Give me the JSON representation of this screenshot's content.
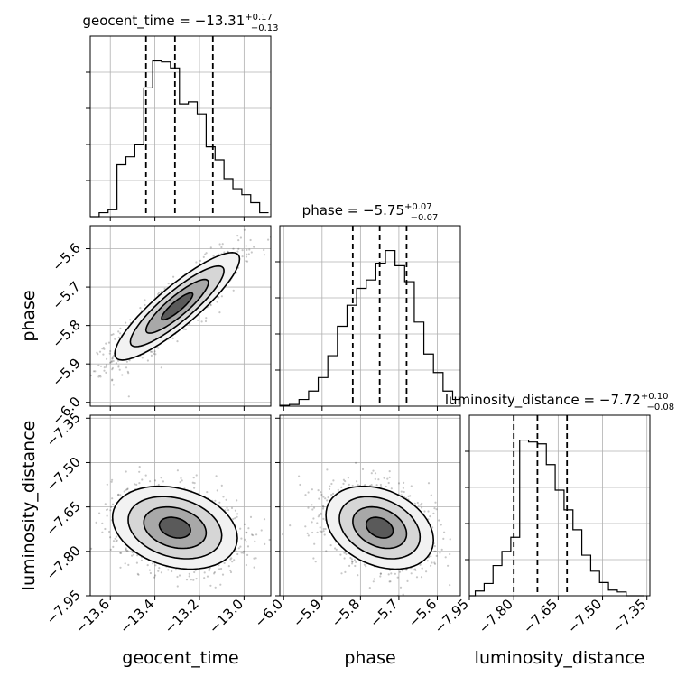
{
  "chart_data": {
    "type": "corner",
    "parameters": [
      "geocent_time",
      "phase",
      "luminosity_distance"
    ],
    "titles": [
      {
        "main": "geocent_time = −13.31",
        "sup": "+0.17",
        "sub": "−0.13"
      },
      {
        "main": "phase = −5.75",
        "sup": "+0.07",
        "sub": "−0.07"
      },
      {
        "main": "luminosity_distance = −7.72",
        "sup": "+0.10",
        "sub": "−0.08"
      }
    ],
    "axis_labels": {
      "x": [
        "geocent_time",
        "phase",
        "luminosity_distance"
      ],
      "y": [
        "phase",
        "luminosity_distance"
      ]
    },
    "ranges": {
      "geocent_time": [
        -13.69,
        -12.88
      ],
      "phase": [
        -6.01,
        -5.54
      ],
      "luminosity_distance": [
        -7.95,
        -7.34
      ]
    },
    "ticks": {
      "geocent_time": [
        -13.6,
        -13.4,
        -13.2,
        -13.0
      ],
      "phase": [
        -6.0,
        -5.9,
        -5.8,
        -5.7,
        -5.6
      ],
      "luminosity_distance": [
        -7.95,
        -7.8,
        -7.65,
        -7.5,
        -7.35
      ]
    },
    "tick_labels": {
      "geocent_time": [
        "−13.6",
        "−13.4",
        "−13.2",
        "−13.0"
      ],
      "phase": [
        "−6.0",
        "−5.9",
        "−5.8",
        "−5.7",
        "−5.6"
      ],
      "luminosity_distance": [
        "−7.95",
        "−7.80",
        "−7.65",
        "−7.50",
        "−7.35"
      ]
    },
    "quantiles": {
      "geocent_time": [
        -13.44,
        -13.31,
        -13.14
      ],
      "phase": [
        -5.82,
        -5.75,
        -5.68
      ],
      "luminosity_distance": [
        -7.8,
        -7.72,
        -7.62
      ]
    },
    "histograms": {
      "geocent_time": {
        "edges": [
          -13.69,
          -13.65,
          -13.61,
          -13.57,
          -13.53,
          -13.49,
          -13.45,
          -13.41,
          -13.37,
          -13.33,
          -13.29,
          -13.25,
          -13.21,
          -13.17,
          -13.13,
          -13.09,
          -13.05,
          -13.01,
          -12.97,
          -12.93,
          -12.89
        ],
        "counts": [
          0,
          4,
          7,
          52,
          60,
          72,
          129,
          156,
          155,
          149,
          113,
          115,
          103,
          70,
          57,
          38,
          28,
          22,
          14,
          4
        ]
      },
      "phase": {
        "edges": [
          -6.01,
          -5.985,
          -5.96,
          -5.935,
          -5.91,
          -5.885,
          -5.86,
          -5.835,
          -5.81,
          -5.785,
          -5.76,
          -5.735,
          -5.71,
          -5.685,
          -5.66,
          -5.635,
          -5.61,
          -5.585,
          -5.56,
          -5.535
        ],
        "counts": [
          1,
          2,
          8,
          18,
          34,
          60,
          95,
          120,
          140,
          150,
          170,
          185,
          167,
          148,
          100,
          62,
          40,
          18,
          8
        ]
      },
      "luminosity_distance": {
        "edges": [
          -7.96,
          -7.93,
          -7.9,
          -7.87,
          -7.84,
          -7.81,
          -7.78,
          -7.75,
          -7.72,
          -7.69,
          -7.66,
          -7.63,
          -7.6,
          -7.57,
          -7.54,
          -7.51,
          -7.48,
          -7.45,
          -7.42,
          -7.39,
          -7.36
        ],
        "counts": [
          0,
          5,
          13,
          32,
          47,
          62,
          165,
          163,
          161,
          139,
          112,
          91,
          70,
          43,
          26,
          14,
          6,
          4,
          0,
          0
        ]
      }
    },
    "joint_2d": [
      {
        "x": "geocent_time",
        "y": "phase",
        "mean": [
          -13.3,
          -5.75
        ],
        "std": [
          0.14,
          0.07
        ],
        "corr": 0.88
      },
      {
        "x": "geocent_time",
        "y": "luminosity_distance",
        "mean": [
          -13.31,
          -7.72
        ],
        "std": [
          0.14,
          0.07
        ],
        "corr": -0.25
      },
      {
        "x": "phase",
        "y": "luminosity_distance",
        "mean": [
          -5.75,
          -7.72
        ],
        "std": [
          0.07,
          0.07
        ],
        "corr": -0.3
      }
    ],
    "contour_levels_sigma": [
      0.5,
      1.0,
      1.5,
      2.0
    ],
    "grid": true,
    "quantile_line_style": "dashed",
    "colors": {
      "line": "#000000",
      "grid": "#b0b0b0",
      "points": "#000000"
    }
  }
}
